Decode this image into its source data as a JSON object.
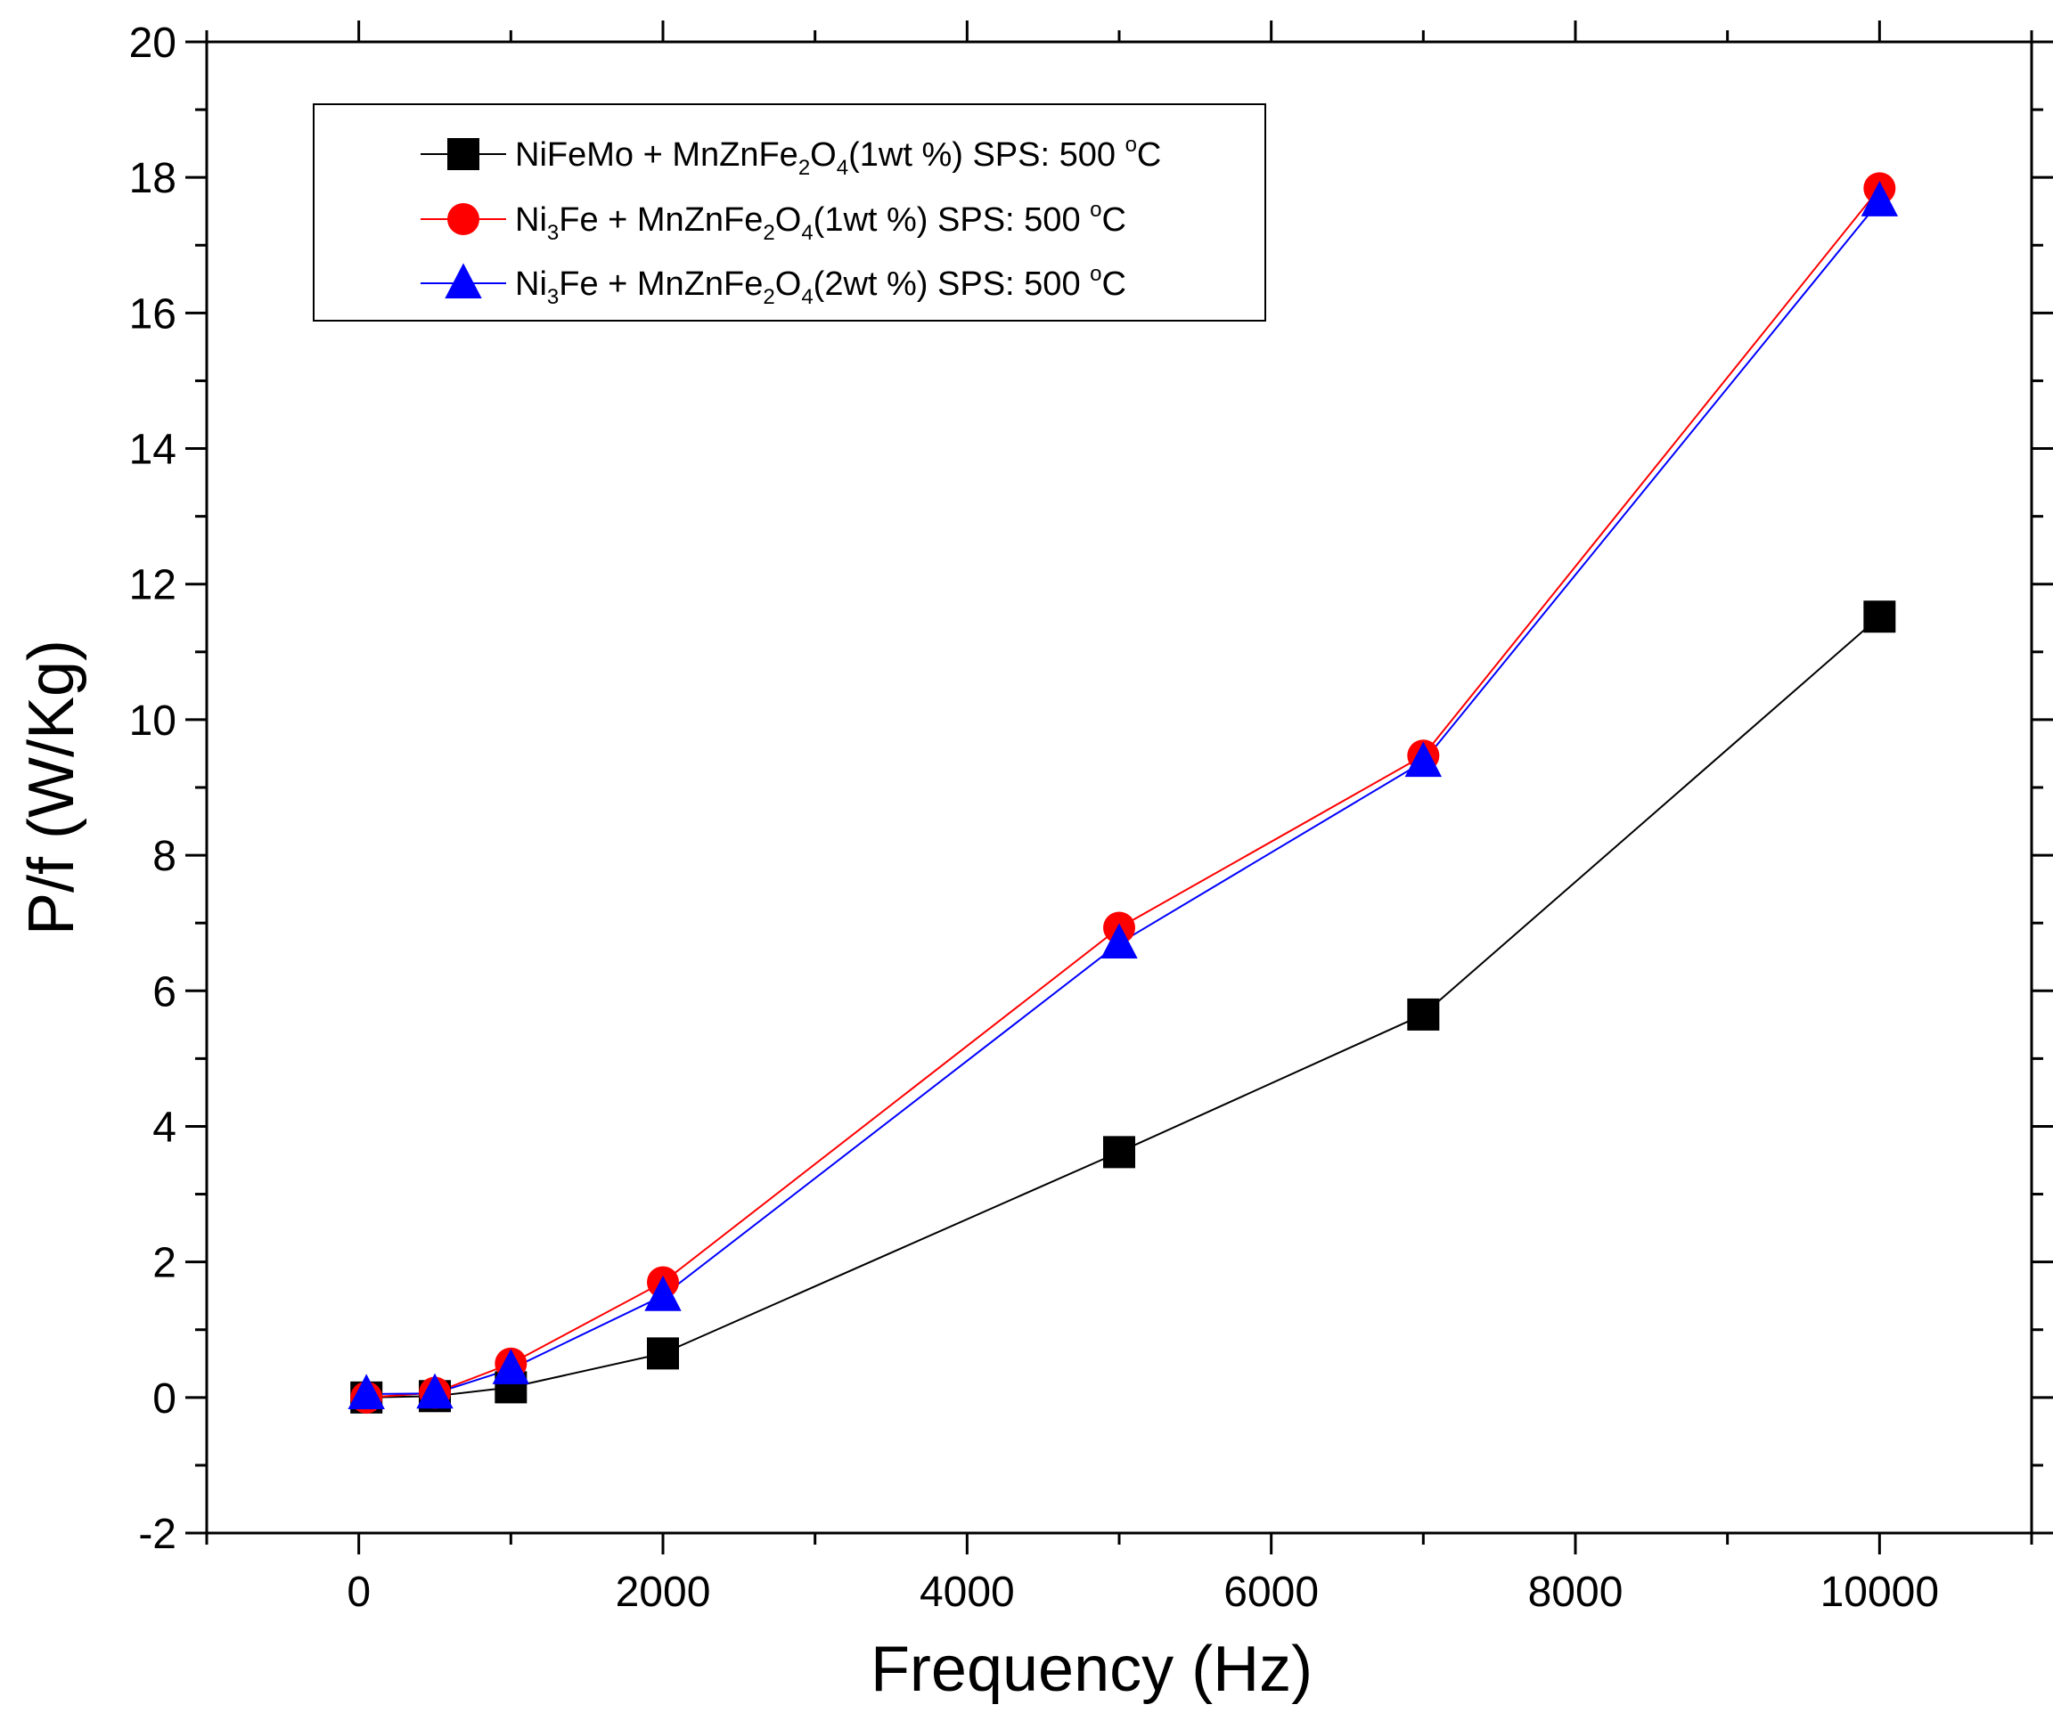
{
  "chart_data": {
    "type": "line",
    "xlabel": "Frequency (Hz)",
    "ylabel": "P/f (W/Kg)",
    "xlim": [
      -1000,
      11000
    ],
    "ylim": [
      -2,
      20
    ],
    "x_ticks": [
      0,
      2000,
      4000,
      6000,
      8000,
      10000
    ],
    "x_tick_labels": [
      "0",
      "2000",
      "4000",
      "6000",
      "8000",
      "10000"
    ],
    "y_ticks": [
      -2,
      0,
      2,
      4,
      6,
      8,
      10,
      12,
      14,
      16,
      18,
      20
    ],
    "y_tick_labels": [
      "-2",
      "0",
      "2",
      "4",
      "6",
      "8",
      "10",
      "12",
      "14",
      "16",
      "18",
      "20"
    ],
    "x": [
      50,
      500,
      1000,
      2000,
      5000,
      7000,
      10000
    ],
    "grid": false,
    "legend_position": "top-left",
    "series": [
      {
        "name": "NiFeMo + MnZnFe2O4(1wt %) SPS: 500 °C",
        "color": "#000000",
        "marker": "square",
        "values": [
          0.0,
          0.02,
          0.15,
          0.65,
          3.62,
          5.65,
          11.52
        ],
        "legend": {
          "pre": "NiFeMo + MnZnFe",
          "sub1": "2",
          "mid": "O",
          "sub2": "4",
          "post": "(1wt %) SPS: 500 ",
          "sup": "o",
          "end": "C"
        }
      },
      {
        "name": "Ni3Fe + MnZnFe2O4(1wt %) SPS: 500 °C",
        "color": "#ff0000",
        "marker": "circle",
        "values": [
          0.0,
          0.07,
          0.5,
          1.7,
          6.93,
          9.47,
          17.84
        ],
        "legend": {
          "pre": "Ni",
          "sub0": "3",
          "pre2": "Fe + MnZnFe",
          "sub1": "2",
          "mid": "O",
          "sub2": "4",
          "post": "(1wt %) SPS: 500 ",
          "sup": "o",
          "end": "C"
        }
      },
      {
        "name": "Ni3Fe + MnZnFe2O4(2wt %) SPS: 500 °C",
        "color": "#0000ff",
        "marker": "triangle",
        "values": [
          0.05,
          0.06,
          0.42,
          1.5,
          6.7,
          9.38,
          17.65
        ],
        "legend": {
          "pre": "Ni",
          "sub0": "3",
          "pre2": "Fe + MnZnFe",
          "sub1": "2",
          "mid": "O",
          "sub2": "4",
          "post": "(2wt %) SPS: 500 ",
          "sup": "o",
          "end": "C"
        }
      }
    ]
  }
}
